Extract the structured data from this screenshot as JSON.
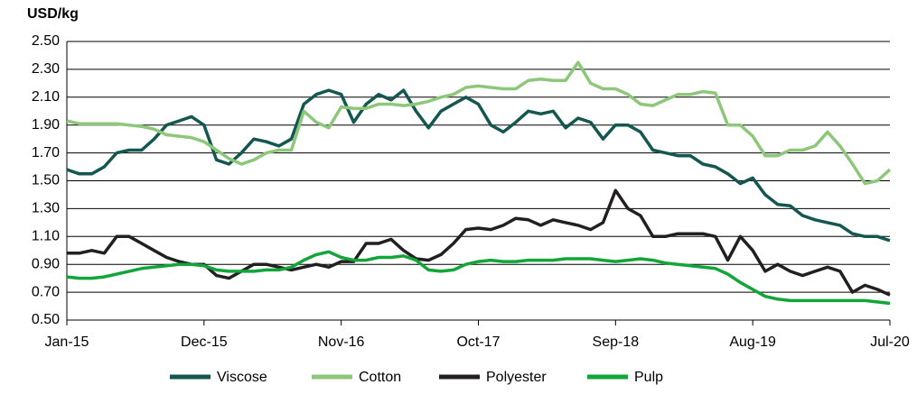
{
  "chart_data": {
    "type": "line",
    "y_label": "USD/kg",
    "categories": [
      "Jan-15",
      null,
      null,
      null,
      null,
      null,
      null,
      null,
      null,
      null,
      null,
      "Dec-15",
      null,
      null,
      null,
      null,
      null,
      null,
      null,
      null,
      null,
      null,
      "Nov-16",
      null,
      null,
      null,
      null,
      null,
      null,
      null,
      null,
      null,
      null,
      "Oct-17",
      null,
      null,
      null,
      null,
      null,
      null,
      null,
      null,
      null,
      null,
      "Sep-18",
      null,
      null,
      null,
      null,
      null,
      null,
      null,
      null,
      null,
      null,
      "Aug-19",
      null,
      null,
      null,
      null,
      null,
      null,
      null,
      null,
      null,
      null,
      "Jul-20"
    ],
    "series": [
      {
        "name": "Viscose",
        "color": "#13574f",
        "values": [
          1.58,
          1.55,
          1.55,
          1.6,
          1.7,
          1.72,
          1.72,
          1.8,
          1.9,
          1.93,
          1.96,
          1.9,
          1.65,
          1.62,
          1.7,
          1.8,
          1.78,
          1.75,
          1.8,
          2.05,
          2.12,
          2.15,
          2.12,
          1.92,
          2.05,
          2.12,
          2.08,
          2.15,
          2.0,
          1.88,
          2.0,
          2.05,
          2.1,
          2.05,
          1.9,
          1.85,
          1.92,
          2.0,
          1.98,
          2.0,
          1.88,
          1.95,
          1.92,
          1.8,
          1.9,
          1.9,
          1.85,
          1.72,
          1.7,
          1.68,
          1.68,
          1.62,
          1.6,
          1.55,
          1.48,
          1.52,
          1.4,
          1.33,
          1.32,
          1.25,
          1.22,
          1.2,
          1.18,
          1.12,
          1.1,
          1.1,
          1.07
        ]
      },
      {
        "name": "Cotton",
        "color": "#8cc77a",
        "values": [
          1.93,
          1.91,
          1.91,
          1.91,
          1.91,
          1.9,
          1.89,
          1.87,
          1.83,
          1.82,
          1.81,
          1.78,
          1.72,
          1.66,
          1.62,
          1.65,
          1.7,
          1.72,
          1.72,
          2.0,
          1.92,
          1.88,
          2.03,
          2.02,
          2.02,
          2.05,
          2.05,
          2.04,
          2.05,
          2.07,
          2.1,
          2.12,
          2.17,
          2.18,
          2.17,
          2.16,
          2.16,
          2.22,
          2.23,
          2.22,
          2.22,
          2.35,
          2.2,
          2.16,
          2.16,
          2.12,
          2.05,
          2.04,
          2.08,
          2.12,
          2.12,
          2.14,
          2.13,
          1.9,
          1.9,
          1.82,
          1.68,
          1.68,
          1.72,
          1.72,
          1.75,
          1.85,
          1.75,
          1.62,
          1.48,
          1.5,
          1.58
        ]
      },
      {
        "name": "Polyester",
        "color": "#231f20",
        "values": [
          0.98,
          0.98,
          1.0,
          0.98,
          1.1,
          1.1,
          1.05,
          1.0,
          0.95,
          0.92,
          0.9,
          0.9,
          0.82,
          0.8,
          0.85,
          0.9,
          0.9,
          0.88,
          0.86,
          0.88,
          0.9,
          0.88,
          0.92,
          0.92,
          1.05,
          1.05,
          1.08,
          1.0,
          0.94,
          0.93,
          0.97,
          1.05,
          1.15,
          1.16,
          1.15,
          1.18,
          1.23,
          1.22,
          1.18,
          1.22,
          1.2,
          1.18,
          1.15,
          1.2,
          1.43,
          1.3,
          1.25,
          1.1,
          1.1,
          1.12,
          1.12,
          1.12,
          1.1,
          0.93,
          1.1,
          1.0,
          0.85,
          0.9,
          0.85,
          0.82,
          0.85,
          0.88,
          0.85,
          0.7,
          0.75,
          0.72,
          0.68
        ]
      },
      {
        "name": "Pulp",
        "color": "#12a53a",
        "values": [
          0.81,
          0.8,
          0.8,
          0.81,
          0.83,
          0.85,
          0.87,
          0.88,
          0.89,
          0.9,
          0.9,
          0.89,
          0.86,
          0.85,
          0.85,
          0.85,
          0.86,
          0.86,
          0.88,
          0.93,
          0.97,
          0.99,
          0.95,
          0.93,
          0.93,
          0.95,
          0.95,
          0.96,
          0.93,
          0.86,
          0.85,
          0.86,
          0.9,
          0.92,
          0.93,
          0.92,
          0.92,
          0.93,
          0.93,
          0.93,
          0.94,
          0.94,
          0.94,
          0.93,
          0.92,
          0.93,
          0.94,
          0.93,
          0.91,
          0.9,
          0.89,
          0.88,
          0.87,
          0.83,
          0.77,
          0.72,
          0.67,
          0.65,
          0.64,
          0.64,
          0.64,
          0.64,
          0.64,
          0.64,
          0.64,
          0.63,
          0.62
        ]
      }
    ],
    "ylim": [
      0.5,
      2.5
    ],
    "yticks": [
      {
        "value": 0.5,
        "label": "0.50"
      },
      {
        "value": 0.7,
        "label": "0.70"
      },
      {
        "value": 0.9,
        "label": "0.90"
      },
      {
        "value": 1.1,
        "label": "1.10"
      },
      {
        "value": 1.3,
        "label": "1.30"
      },
      {
        "value": 1.5,
        "label": "1.50"
      },
      {
        "value": 1.7,
        "label": "1.70"
      },
      {
        "value": 1.9,
        "label": "1.90"
      },
      {
        "value": 2.1,
        "label": "2.10"
      },
      {
        "value": 2.3,
        "label": "2.30"
      },
      {
        "value": 2.5,
        "label": "2.50"
      }
    ],
    "grid": true,
    "legend": "bottom"
  }
}
